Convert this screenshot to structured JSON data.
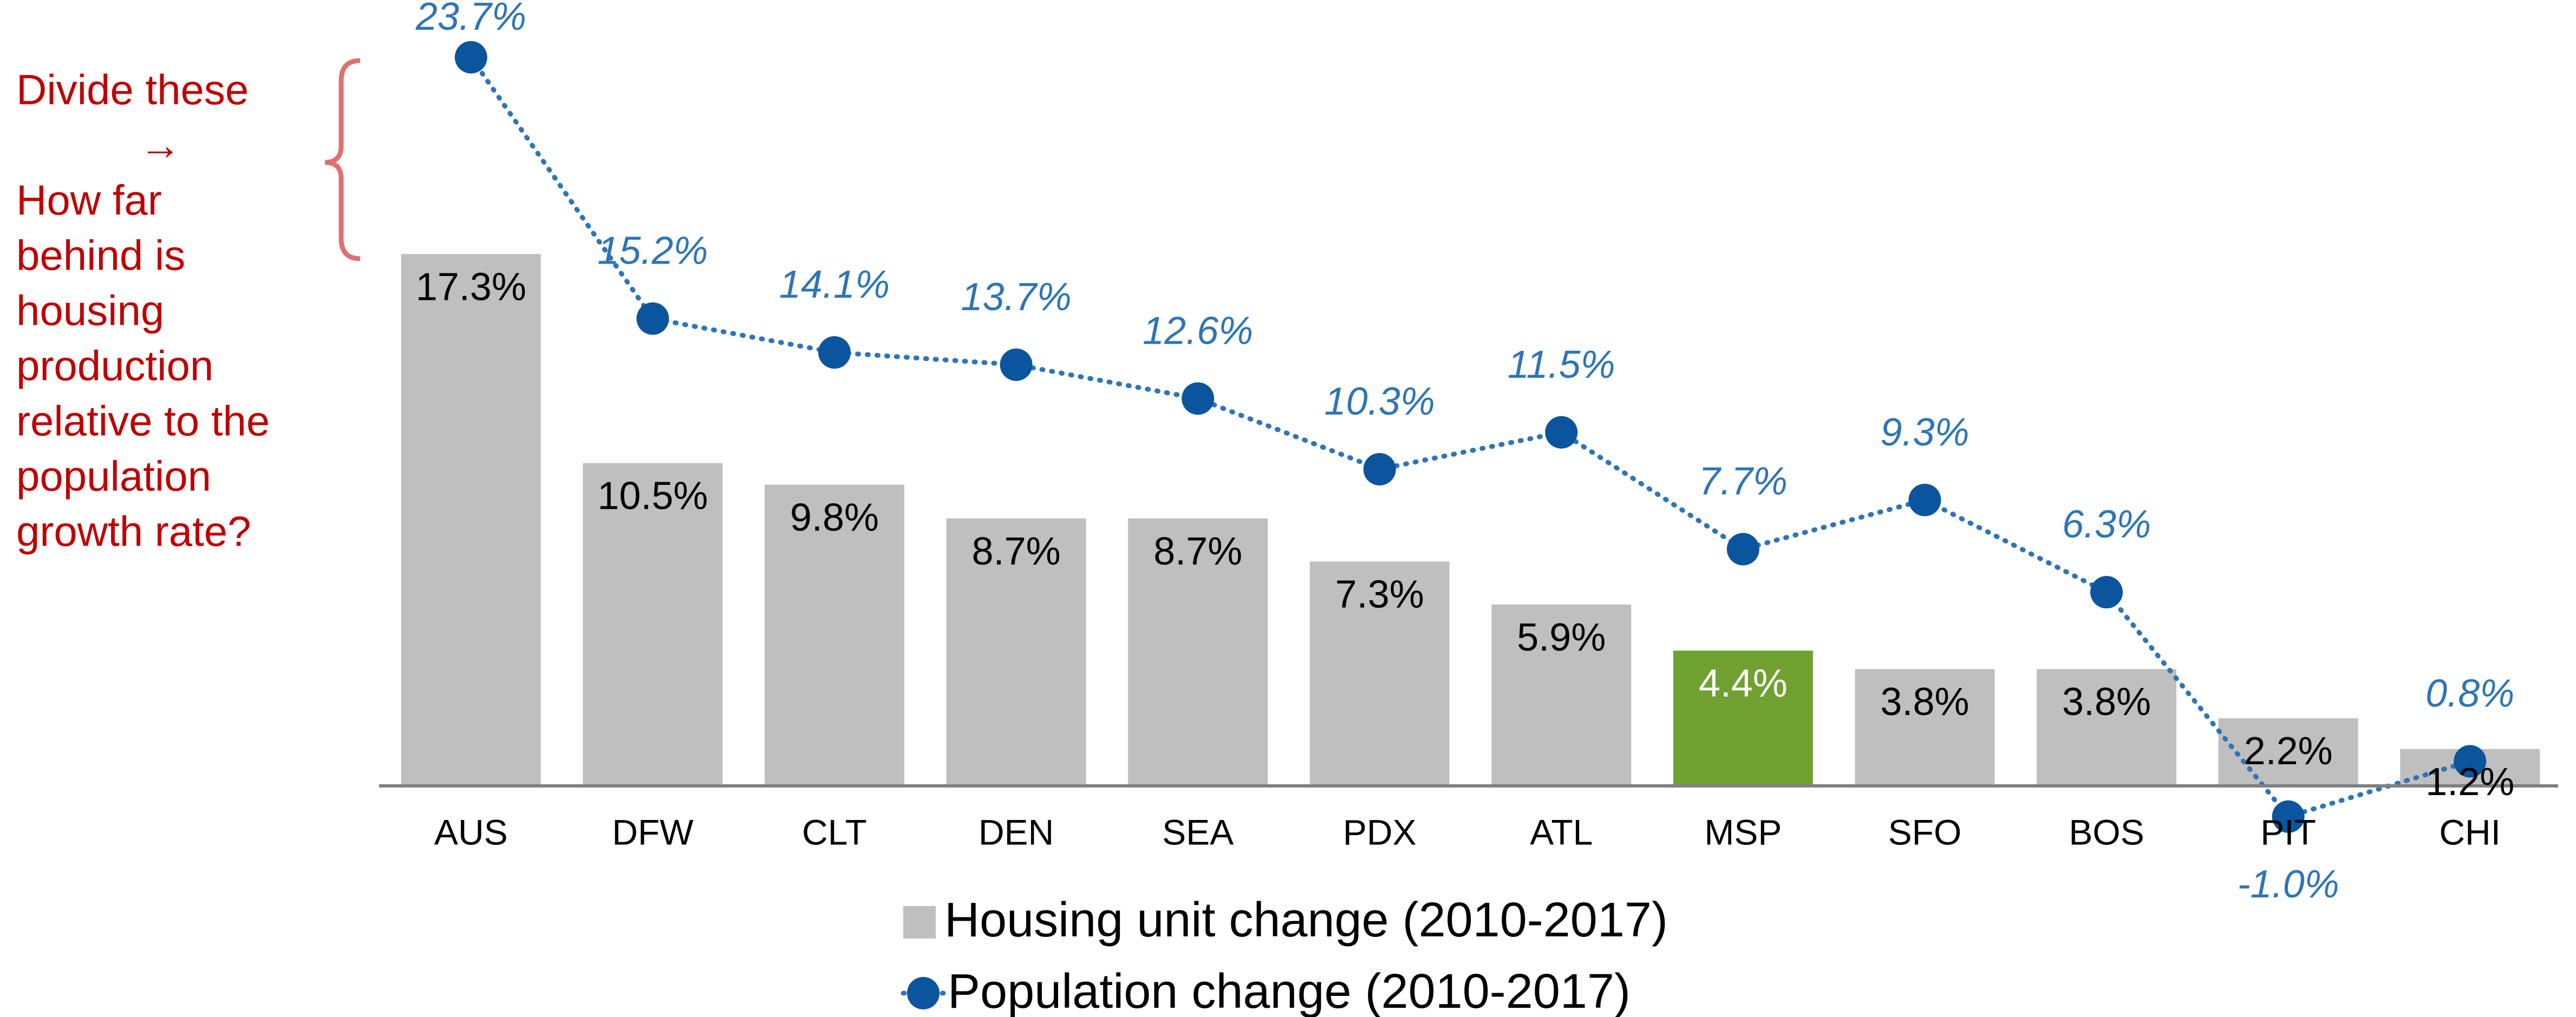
{
  "chart_data": {
    "type": "bar",
    "categories": [
      "AUS",
      "DFW",
      "CLT",
      "DEN",
      "SEA",
      "PDX",
      "ATL",
      "MSP",
      "SFO",
      "BOS",
      "PIT",
      "CHI"
    ],
    "series": [
      {
        "name": "Housing unit change (2010-2017)",
        "type": "bar",
        "color": "#bfbfbf",
        "colors": [
          "#bfbfbf",
          "#bfbfbf",
          "#bfbfbf",
          "#bfbfbf",
          "#bfbfbf",
          "#bfbfbf",
          "#bfbfbf",
          "#70a030",
          "#bfbfbf",
          "#bfbfbf",
          "#bfbfbf",
          "#bfbfbf"
        ],
        "label_colors": [
          "#000000",
          "#000000",
          "#000000",
          "#000000",
          "#000000",
          "#000000",
          "#000000",
          "#ffffff",
          "#000000",
          "#000000",
          "#000000",
          "#000000"
        ],
        "values": [
          17.3,
          10.5,
          9.8,
          8.7,
          8.7,
          7.3,
          5.9,
          4.4,
          3.8,
          3.8,
          2.2,
          1.2
        ],
        "value_labels": [
          "17.3%",
          "10.5%",
          "9.8%",
          "8.7%",
          "8.7%",
          "7.3%",
          "5.9%",
          "4.4%",
          "3.8%",
          "3.8%",
          "2.2%",
          "1.2%"
        ]
      },
      {
        "name": "Population change (2010-2017)",
        "type": "line",
        "color": "#0b559f",
        "label_color": "#2e75b6",
        "values": [
          23.7,
          15.2,
          14.1,
          13.7,
          12.6,
          10.3,
          11.5,
          7.7,
          9.3,
          6.3,
          -1.0,
          0.8
        ],
        "value_labels": [
          "23.7%",
          "15.2%",
          "14.1%",
          "13.7%",
          "12.6%",
          "10.3%",
          "11.5%",
          "7.7%",
          "9.3%",
          "6.3%",
          "-1.0%",
          "0.8%"
        ]
      }
    ],
    "ylim": [
      -2,
      25
    ],
    "annotation": [
      "Divide these",
      "→",
      "How far",
      "behind is",
      "housing",
      "production",
      "relative to the",
      "population",
      "growth rate?"
    ],
    "annotation_color": "#c00000"
  }
}
